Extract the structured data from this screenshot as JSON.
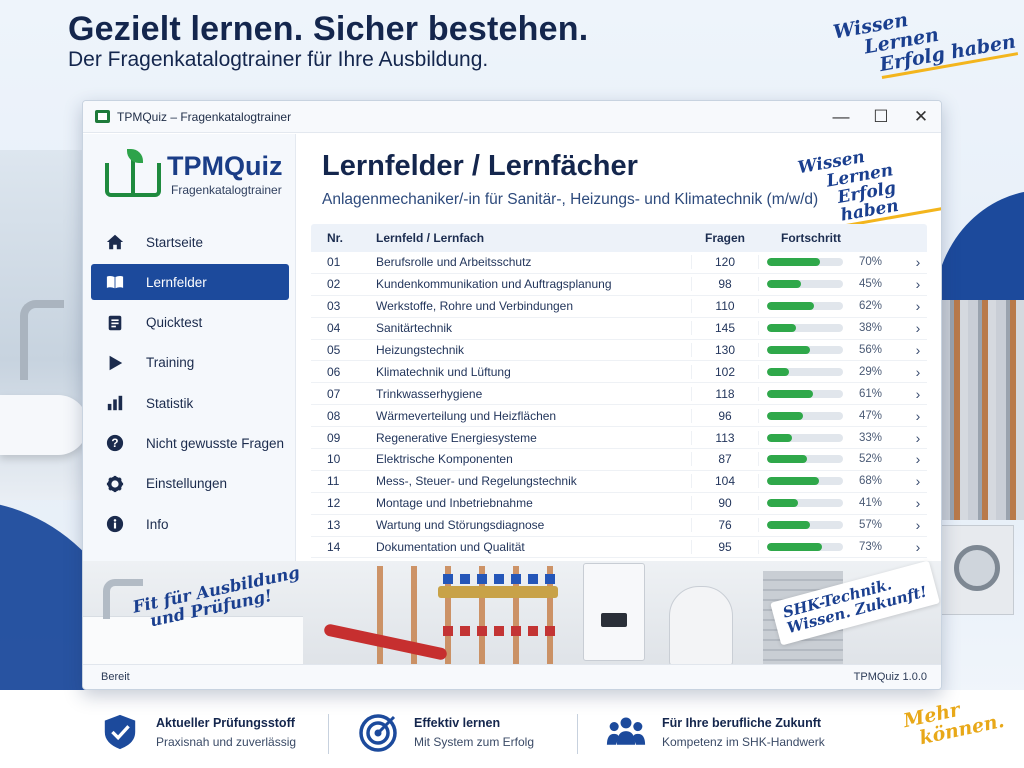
{
  "hero": {
    "title": "Gezielt lernen. Sicher bestehen.",
    "subtitle": "Der Fragenkatalogtrainer für Ihre Ausbildung."
  },
  "slogans": {
    "top": [
      "Wissen",
      "Lernen",
      "Erfolg haben"
    ],
    "window": [
      "Wissen",
      "Lernen",
      "Erfolg haben"
    ],
    "fit": [
      "Fit für Ausbildung",
      "und Prüfung!"
    ],
    "shk": [
      "SHK-Technik.",
      "Wissen. Zukunft!"
    ],
    "mehr": [
      "Mehr",
      "können."
    ]
  },
  "window": {
    "title": "TPMQuiz – Fragenkatalogtrainer",
    "controls": {
      "minimize": "—",
      "maximize": "☐",
      "close": "✕"
    }
  },
  "logo": {
    "name": "TPMQuiz",
    "subtitle": "Fragenkatalogtrainer"
  },
  "nav": {
    "items": [
      {
        "label": "Startseite",
        "icon": "home-icon"
      },
      {
        "label": "Lernfelder",
        "icon": "book-icon",
        "active": true
      },
      {
        "label": "Quicktest",
        "icon": "document-icon"
      },
      {
        "label": "Training",
        "icon": "play-icon"
      },
      {
        "label": "Statistik",
        "icon": "bar-chart-icon"
      },
      {
        "label": "Nicht gewusste Fragen",
        "icon": "question-icon"
      },
      {
        "label": "Einstellungen",
        "icon": "gear-icon"
      },
      {
        "label": "Info",
        "icon": "info-icon"
      }
    ]
  },
  "main": {
    "title": "Lernfelder / Lernfächer",
    "subtitle": "Anlagenmechaniker/-in für Sanitär-, Heizungs- und Klimatechnik (m/w/d)"
  },
  "table": {
    "headers": {
      "nr": "Nr.",
      "name": "Lernfeld / Lernfach",
      "fragen": "Fragen",
      "progress": "Fortschritt"
    },
    "rows": [
      {
        "nr": "01",
        "name": "Berufsrolle und Arbeitsschutz",
        "fragen": "120",
        "pct": "70%",
        "value": 70
      },
      {
        "nr": "02",
        "name": "Kundenkommunikation und Auftragsplanung",
        "fragen": "98",
        "pct": "45%",
        "value": 45
      },
      {
        "nr": "03",
        "name": "Werkstoffe, Rohre und Verbindungen",
        "fragen": "110",
        "pct": "62%",
        "value": 62
      },
      {
        "nr": "04",
        "name": "Sanitärtechnik",
        "fragen": "145",
        "pct": "38%",
        "value": 38
      },
      {
        "nr": "05",
        "name": "Heizungstechnik",
        "fragen": "130",
        "pct": "56%",
        "value": 56
      },
      {
        "nr": "06",
        "name": "Klimatechnik und Lüftung",
        "fragen": "102",
        "pct": "29%",
        "value": 29
      },
      {
        "nr": "07",
        "name": "Trinkwasserhygiene",
        "fragen": "118",
        "pct": "61%",
        "value": 61
      },
      {
        "nr": "08",
        "name": "Wärmeverteilung und Heizflächen",
        "fragen": "96",
        "pct": "47%",
        "value": 47
      },
      {
        "nr": "09",
        "name": "Regenerative Energiesysteme",
        "fragen": "113",
        "pct": "33%",
        "value": 33
      },
      {
        "nr": "10",
        "name": "Elektrische Komponenten",
        "fragen": "87",
        "pct": "52%",
        "value": 52
      },
      {
        "nr": "11",
        "name": "Mess-, Steuer- und Regelungstechnik",
        "fragen": "104",
        "pct": "68%",
        "value": 68
      },
      {
        "nr": "12",
        "name": "Montage und Inbetriebnahme",
        "fragen": "90",
        "pct": "41%",
        "value": 41
      },
      {
        "nr": "13",
        "name": "Wartung und Störungsdiagnose",
        "fragen": "76",
        "pct": "57%",
        "value": 57
      },
      {
        "nr": "14",
        "name": "Dokumentation und Qualität",
        "fragen": "95",
        "pct": "73%",
        "value": 73
      }
    ]
  },
  "status": {
    "left": "Bereit",
    "right": "TPMQuiz 1.0.0"
  },
  "features": [
    {
      "title": "Aktueller Prüfungsstoff",
      "sub": "Praxisnah und zuverlässig",
      "icon": "shield-check-icon"
    },
    {
      "title": "Effektiv lernen",
      "sub": "Mit System zum Erfolg",
      "icon": "target-icon"
    },
    {
      "title": "Für Ihre berufliche Zukunft",
      "sub": "Kompetenz im SHK-Handwerk",
      "icon": "team-icon"
    }
  ],
  "colors": {
    "primary": "#1c4a9c",
    "progress": "#2fa84a",
    "accent": "#f3b51d",
    "logo_green": "#1e8a3e"
  }
}
